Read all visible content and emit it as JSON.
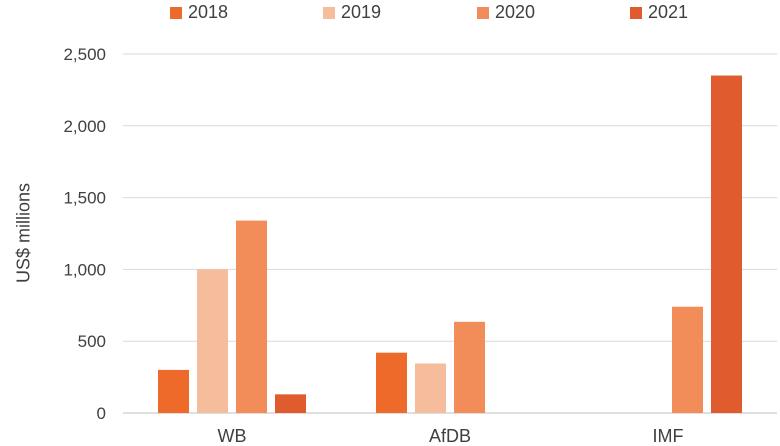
{
  "chart_data": {
    "type": "bar",
    "title": "",
    "xlabel": "",
    "ylabel": "US$ millions",
    "ylim": [
      0,
      2500
    ],
    "yticks": [
      0,
      500,
      1000,
      1500,
      2000,
      2500
    ],
    "ytick_labels": [
      "0",
      "500",
      "1,000",
      "1,500",
      "2,000",
      "2,500"
    ],
    "grid": true,
    "legend_position": "top",
    "categories": [
      "WB",
      "AfDB",
      "IMF"
    ],
    "series": [
      {
        "name": "2018",
        "color": "#EE6A2B",
        "values": [
          300,
          420,
          null
        ]
      },
      {
        "name": "2019",
        "color": "#F6BD9C",
        "values": [
          1000,
          345,
          null
        ]
      },
      {
        "name": "2020",
        "color": "#F28C58",
        "values": [
          1340,
          635,
          740
        ]
      },
      {
        "name": "2021",
        "color": "#E05C2E",
        "values": [
          130,
          null,
          2350
        ]
      }
    ]
  }
}
